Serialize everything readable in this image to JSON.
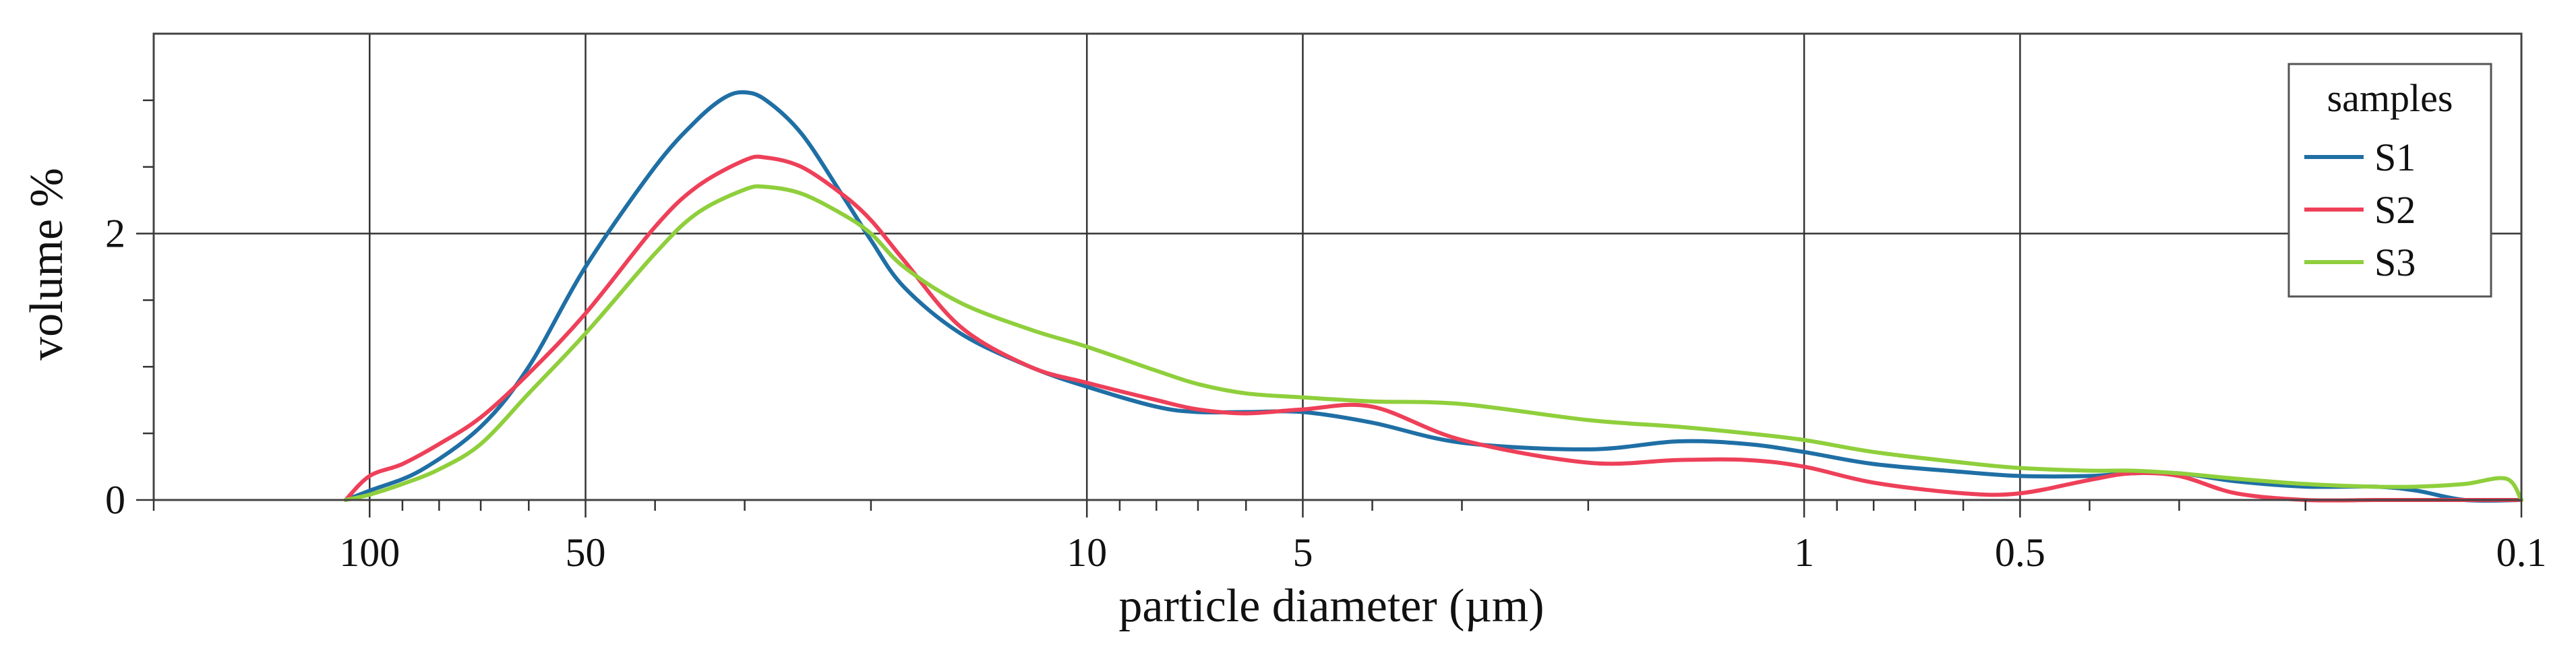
{
  "chart_data": {
    "type": "line",
    "title": "",
    "xlabel": "particle diameter (µm)",
    "ylabel": "volume %",
    "x_scale": "log",
    "x_reversed": true,
    "xlim": [
      200,
      0.1
    ],
    "ylim": [
      0,
      3.5
    ],
    "x_major_ticks": [
      100,
      50,
      10,
      5,
      1,
      0.5,
      0.1
    ],
    "x_major_tick_labels": [
      "100",
      "50",
      "10",
      "5",
      "1",
      "0.5",
      "0.1"
    ],
    "x_minor_ticks": [
      200,
      90,
      80,
      70,
      60,
      40,
      30,
      20,
      9,
      8,
      7,
      6,
      4,
      3,
      2,
      0.9,
      0.8,
      0.7,
      0.6,
      0.4,
      0.3,
      0.2
    ],
    "y_major_ticks": [
      0,
      2
    ],
    "y_major_tick_labels": [
      "0",
      "2"
    ],
    "y_minor_ticks": [
      0.5,
      1,
      1.5,
      2.5,
      3
    ],
    "grid": true,
    "legend": {
      "title": "samples",
      "placement": "top-right"
    },
    "series": [
      {
        "name": "S1",
        "color": "#1f6fa5",
        "x": [
          108,
          100,
          85,
          70,
          60,
          50,
          40,
          35,
          32,
          30,
          28,
          25,
          22,
          20,
          18,
          15,
          12,
          10,
          8,
          7,
          6,
          5,
          4,
          3,
          2,
          1.5,
          1.2,
          1,
          0.8,
          0.6,
          0.5,
          0.4,
          0.35,
          0.3,
          0.25,
          0.2,
          0.16,
          0.14,
          0.12,
          0.1
        ],
        "y": [
          0,
          0.07,
          0.22,
          0.55,
          1.0,
          1.75,
          2.5,
          2.85,
          3.02,
          3.06,
          3.0,
          2.75,
          2.3,
          1.95,
          1.6,
          1.25,
          1.0,
          0.85,
          0.7,
          0.66,
          0.66,
          0.66,
          0.58,
          0.43,
          0.38,
          0.44,
          0.42,
          0.36,
          0.27,
          0.21,
          0.18,
          0.18,
          0.2,
          0.2,
          0.14,
          0.1,
          0.1,
          0.07,
          0.0,
          0.0
        ]
      },
      {
        "name": "S2",
        "color": "#ee4059",
        "x": [
          108,
          100,
          90,
          80,
          70,
          60,
          50,
          40,
          35,
          30,
          28,
          25,
          22,
          20,
          18,
          15,
          12,
          10,
          8,
          7,
          6,
          5,
          4,
          3,
          2,
          1.5,
          1.2,
          1,
          0.8,
          0.6,
          0.5,
          0.4,
          0.35,
          0.3,
          0.25,
          0.2,
          0.16,
          0.14,
          0.12,
          0.1
        ],
        "y": [
          0,
          0.18,
          0.27,
          0.42,
          0.62,
          0.95,
          1.4,
          2.05,
          2.35,
          2.55,
          2.57,
          2.5,
          2.3,
          2.1,
          1.8,
          1.3,
          1.0,
          0.88,
          0.75,
          0.68,
          0.65,
          0.68,
          0.7,
          0.45,
          0.28,
          0.3,
          0.3,
          0.25,
          0.13,
          0.05,
          0.05,
          0.15,
          0.2,
          0.18,
          0.05,
          0.0,
          0.0,
          0.0,
          0.0,
          0.0
        ]
      },
      {
        "name": "S3",
        "color": "#8fcf3c",
        "x": [
          108,
          100,
          90,
          80,
          70,
          60,
          50,
          40,
          35,
          30,
          28,
          25,
          22,
          20,
          18,
          15,
          12,
          10,
          8,
          7,
          6,
          5,
          4,
          3,
          2,
          1.5,
          1.2,
          1,
          0.8,
          0.6,
          0.5,
          0.4,
          0.35,
          0.3,
          0.25,
          0.2,
          0.16,
          0.14,
          0.12,
          0.105,
          0.1
        ],
        "y": [
          0,
          0.04,
          0.12,
          0.23,
          0.42,
          0.8,
          1.25,
          1.85,
          2.15,
          2.33,
          2.35,
          2.3,
          2.15,
          2.0,
          1.75,
          1.48,
          1.28,
          1.15,
          0.97,
          0.87,
          0.8,
          0.77,
          0.74,
          0.72,
          0.6,
          0.55,
          0.5,
          0.45,
          0.36,
          0.28,
          0.24,
          0.22,
          0.22,
          0.2,
          0.16,
          0.12,
          0.1,
          0.1,
          0.12,
          0.16,
          0.0
        ]
      }
    ]
  }
}
